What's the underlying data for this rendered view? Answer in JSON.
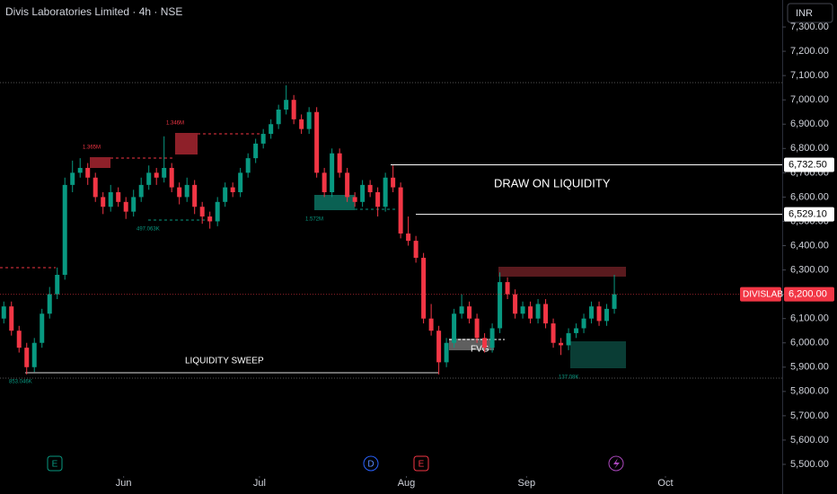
{
  "header": {
    "title": "Divis Laboratories Limited · 4h · NSE",
    "currency": "INR"
  },
  "chart_data": {
    "type": "candlestick",
    "ohlc": [
      [
        6100,
        6170,
        6080,
        6150
      ],
      [
        6150,
        6170,
        6030,
        6050
      ],
      [
        6050,
        6070,
        5960,
        5980
      ],
      [
        5980,
        6000,
        5870,
        5900
      ],
      [
        5900,
        6020,
        5880,
        6000
      ],
      [
        6000,
        6140,
        5980,
        6120
      ],
      [
        6120,
        6230,
        6100,
        6200
      ],
      [
        6200,
        6310,
        6180,
        6280
      ],
      [
        6280,
        6680,
        6260,
        6650
      ],
      [
        6650,
        6750,
        6620,
        6700
      ],
      [
        6700,
        6760,
        6680,
        6720
      ],
      [
        6720,
        6740,
        6650,
        6680
      ],
      [
        6680,
        6700,
        6580,
        6600
      ],
      [
        6600,
        6620,
        6530,
        6560
      ],
      [
        6560,
        6650,
        6540,
        6620
      ],
      [
        6620,
        6640,
        6560,
        6580
      ],
      [
        6580,
        6600,
        6510,
        6540
      ],
      [
        6540,
        6630,
        6520,
        6600
      ],
      [
        6600,
        6680,
        6580,
        6650
      ],
      [
        6650,
        6730,
        6630,
        6700
      ],
      [
        6700,
        6720,
        6650,
        6680
      ],
      [
        6680,
        6850,
        6660,
        6720
      ],
      [
        6720,
        6740,
        6620,
        6640
      ],
      [
        6640,
        6660,
        6570,
        6600
      ],
      [
        6600,
        6680,
        6580,
        6650
      ],
      [
        6650,
        6670,
        6530,
        6560
      ],
      [
        6560,
        6580,
        6490,
        6520
      ],
      [
        6520,
        6540,
        6470,
        6500
      ],
      [
        6500,
        6600,
        6480,
        6580
      ],
      [
        6580,
        6660,
        6560,
        6640
      ],
      [
        6640,
        6660,
        6600,
        6620
      ],
      [
        6620,
        6720,
        6600,
        6700
      ],
      [
        6700,
        6780,
        6680,
        6760
      ],
      [
        6760,
        6840,
        6740,
        6820
      ],
      [
        6820,
        6880,
        6800,
        6860
      ],
      [
        6860,
        6920,
        6840,
        6900
      ],
      [
        6900,
        6980,
        6880,
        6960
      ],
      [
        6960,
        7060,
        6940,
        7000
      ],
      [
        7000,
        7020,
        6900,
        6920
      ],
      [
        6920,
        6940,
        6860,
        6880
      ],
      [
        6880,
        6970,
        6860,
        6950
      ],
      [
        6950,
        6970,
        6680,
        6700
      ],
      [
        6700,
        6720,
        6600,
        6620
      ],
      [
        6620,
        6800,
        6600,
        6780
      ],
      [
        6780,
        6800,
        6680,
        6700
      ],
      [
        6700,
        6720,
        6580,
        6600
      ],
      [
        6600,
        6620,
        6560,
        6580
      ],
      [
        6580,
        6670,
        6560,
        6650
      ],
      [
        6650,
        6670,
        6600,
        6620
      ],
      [
        6620,
        6640,
        6520,
        6560
      ],
      [
        6560,
        6700,
        6540,
        6680
      ],
      [
        6680,
        6730,
        6620,
        6640
      ],
      [
        6640,
        6660,
        6430,
        6450
      ],
      [
        6450,
        6520,
        6400,
        6420
      ],
      [
        6420,
        6440,
        6330,
        6350
      ],
      [
        6350,
        6370,
        6080,
        6100
      ],
      [
        6100,
        6160,
        6030,
        6050
      ],
      [
        6050,
        6070,
        5870,
        5920
      ],
      [
        5920,
        6020,
        5900,
        6000
      ],
      [
        6000,
        6140,
        5980,
        6120
      ],
      [
        6120,
        6200,
        6100,
        6150
      ],
      [
        6150,
        6170,
        6080,
        6100
      ],
      [
        6100,
        6120,
        6000,
        6020
      ],
      [
        6020,
        6040,
        5960,
        5980
      ],
      [
        5980,
        6080,
        5960,
        6060
      ],
      [
        6060,
        6290,
        6040,
        6250
      ],
      [
        6250,
        6270,
        6180,
        6200
      ],
      [
        6200,
        6220,
        6100,
        6120
      ],
      [
        6120,
        6170,
        6100,
        6150
      ],
      [
        6150,
        6170,
        6080,
        6100
      ],
      [
        6100,
        6180,
        6080,
        6160
      ],
      [
        6160,
        6180,
        6060,
        6080
      ],
      [
        6080,
        6100,
        5980,
        6000
      ],
      [
        6000,
        6020,
        5950,
        5990
      ],
      [
        5990,
        6060,
        5970,
        6040
      ],
      [
        6040,
        6080,
        6020,
        6060
      ],
      [
        6060,
        6120,
        6040,
        6100
      ],
      [
        6100,
        6170,
        6080,
        6150
      ],
      [
        6150,
        6170,
        6070,
        6090
      ],
      [
        6090,
        6160,
        6070,
        6140
      ],
      [
        6140,
        6280,
        6120,
        6200
      ]
    ],
    "up_color": "#089981",
    "down_color": "#f23645",
    "xlim": [
      -0.5,
      102
    ],
    "xticks": [
      {
        "value": 15.7,
        "label": "Jun"
      },
      {
        "value": 33.5,
        "label": "Jul"
      },
      {
        "value": 52.75,
        "label": "Aug"
      },
      {
        "value": 68.5,
        "label": "Sep"
      },
      {
        "value": 86.7,
        "label": "Oct"
      }
    ],
    "ylim": [
      5378,
      7411
    ],
    "yticks": [
      {
        "value": 5500,
        "label": "5,500.00"
      },
      {
        "value": 5600,
        "label": "5,600.00"
      },
      {
        "value": 5700,
        "label": "5,700.00"
      },
      {
        "value": 5800,
        "label": "5,800.00"
      },
      {
        "value": 5900,
        "label": "5,900.00"
      },
      {
        "value": 6000,
        "label": "6,000.00"
      },
      {
        "value": 6100,
        "label": "6,100.00"
      },
      {
        "value": 6200,
        "label": "6,200.00"
      },
      {
        "value": 6300,
        "label": "6,300.00"
      },
      {
        "value": 6400,
        "label": "6,400.00"
      },
      {
        "value": 6500,
        "label": "6,500.00"
      },
      {
        "value": 6600,
        "label": "6,600.00"
      },
      {
        "value": 6700,
        "label": "6,700.00"
      },
      {
        "value": 6800,
        "label": "6,800.00"
      },
      {
        "value": 6900,
        "label": "6,900.00"
      },
      {
        "value": 7000,
        "label": "7,000.00"
      },
      {
        "value": 7100,
        "label": "7,100.00"
      },
      {
        "value": 7200,
        "label": "7,200.00"
      },
      {
        "value": 7300,
        "label": "7,300.00"
      }
    ],
    "levels": [
      {
        "value": 6732.5,
        "label": "6,732.50"
      },
      {
        "value": 6529.1,
        "label": "6,529.10"
      }
    ],
    "last_price": {
      "symbol": "DIVISLAB",
      "value": 6200,
      "label": "6,200.00"
    },
    "annotations": {
      "draw": "DRAW ON LIQUIDITY",
      "sweep": "LIQUIDITY SWEEP",
      "fvg": "FVG"
    },
    "volume_labels": [
      "1.365M",
      "1.346M",
      "497.063K",
      "1.572M",
      "853.046K",
      "137.08K"
    ],
    "events": [
      "E",
      "D",
      "E"
    ]
  }
}
